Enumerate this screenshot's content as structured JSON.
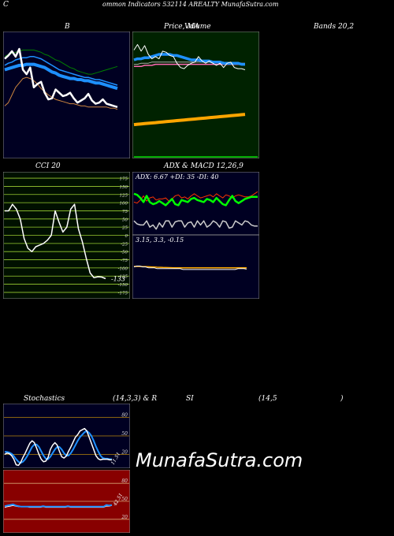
{
  "header": {
    "c": "C",
    "title": "ommon  Indicators 532114  AREALTY MunafaSutra.com"
  },
  "labels": {
    "bollinger_b": "B",
    "price_ma_1": "Price,  MA",
    "price_ma_2": "Volume",
    "bands": "Bands 20,2",
    "cci": "CCI 20",
    "adx_title": "ADX  & MACD 12,26,9",
    "adx_values": "ADX: 6.67  +DI: 35  -DI: 40",
    "macd_values": "3.15,  3.3,  -0.15",
    "stoch_1": "Stochastics",
    "stoch_2": "(14,3,3) & R",
    "stoch_3": "SI",
    "stoch_4": "(14,5",
    "stoch_5": ")"
  },
  "watermark": "MunafaSutra.com",
  "colors": {
    "panel_navy": "#000022",
    "panel_green": "#002200",
    "panel_red": "#880000",
    "cci_bg": "#001000",
    "grid_gold": "#b8860b",
    "grid_yellowgreen": "#9acd32",
    "rsi_grid": "#d4a373",
    "price": "#ffffff",
    "ma_blue": "#1e90ff",
    "ma_green": "#008000",
    "ma_orange": "#cd853f",
    "volume": "#ffa500",
    "adx_green": "#00ff00",
    "adx_red": "#ff3300",
    "stoch_white": "#ffffff",
    "stoch_blue": "#1e90ff"
  },
  "chart_data": [
    {
      "type": "line",
      "name": "bollinger",
      "x": [
        1,
        2,
        3,
        4,
        5,
        6,
        7,
        8,
        9,
        10,
        11,
        12,
        13,
        14,
        15,
        16,
        17,
        18,
        19,
        20,
        21,
        22,
        23,
        24,
        25,
        26,
        27,
        28,
        29,
        30,
        31,
        32
      ],
      "series": [
        {
          "values": [
            88,
            91,
            95,
            90,
            97,
            78,
            74,
            80,
            62,
            65,
            67,
            57,
            51,
            52,
            60,
            57,
            54,
            55,
            57,
            52,
            48,
            50,
            52,
            56,
            50,
            47,
            48,
            51,
            47,
            46,
            45,
            44
          ]
        },
        {
          "values": [
            78,
            79,
            80,
            81,
            82,
            82,
            83,
            83,
            83,
            82,
            81,
            80,
            78,
            76,
            75,
            73,
            72,
            71,
            70,
            70,
            69,
            69,
            68,
            68,
            67,
            66,
            66,
            65,
            64,
            63,
            62,
            61
          ]
        },
        {
          "values": [
            82,
            84,
            85,
            87,
            88,
            89,
            89,
            90,
            90,
            89,
            88,
            86,
            84,
            82,
            80,
            78,
            77,
            76,
            75,
            74,
            73,
            72,
            71,
            71,
            70,
            69,
            69,
            68,
            67,
            66,
            65,
            64
          ]
        },
        {
          "values": [
            90,
            92,
            93,
            94,
            95,
            96,
            96,
            96,
            96,
            95,
            94,
            92,
            91,
            89,
            87,
            86,
            84,
            82,
            80,
            79,
            77,
            76,
            75,
            74,
            74,
            75,
            76,
            77,
            78,
            79,
            80,
            81
          ]
        },
        {
          "values": [
            45,
            48,
            55,
            62,
            66,
            70,
            71,
            70,
            68,
            65,
            61,
            58,
            55,
            53,
            51,
            50,
            49,
            48,
            47,
            47,
            46,
            45,
            45,
            44,
            44,
            44,
            44,
            44,
            44,
            43,
            43,
            42
          ]
        }
      ]
    },
    {
      "type": "line",
      "name": "price_ma_volume",
      "x": [
        1,
        2,
        3,
        4,
        5,
        6,
        7,
        8,
        9,
        10,
        11,
        12,
        13,
        14,
        15,
        16,
        17,
        18,
        19,
        20,
        21,
        22,
        23,
        24,
        25,
        26,
        27,
        28,
        29,
        30,
        31,
        32
      ],
      "series": [
        {
          "values": [
            96,
            101,
            95,
            100,
            92,
            88,
            90,
            88,
            95,
            94,
            91,
            90,
            84,
            80,
            79,
            82,
            84,
            85,
            90,
            86,
            84,
            86,
            84,
            82,
            84,
            80,
            84,
            85,
            80,
            79,
            79,
            78
          ]
        },
        {
          "values": [
            87,
            88,
            88,
            89,
            89,
            90,
            91,
            92,
            92,
            92,
            92,
            91,
            91,
            90,
            89,
            88,
            87,
            87,
            87,
            86,
            86,
            86,
            85,
            85,
            85,
            84,
            84,
            84,
            84,
            84,
            83,
            83
          ]
        },
        {
          "values": [
            83,
            83,
            84,
            84,
            84,
            85,
            85,
            85,
            85,
            85,
            85,
            85,
            85,
            85,
            85,
            85,
            85,
            85,
            85,
            85,
            85,
            85,
            85,
            85,
            85,
            85,
            84,
            84,
            84,
            84,
            84,
            84
          ]
        },
        {
          "values": [
            81,
            81,
            81,
            82,
            82,
            82,
            83,
            83,
            83,
            83,
            83,
            83,
            83,
            83,
            83,
            83,
            83,
            83,
            83,
            83,
            83,
            83,
            83,
            83,
            83,
            83,
            83,
            83,
            83,
            83,
            83,
            83
          ]
        },
        {
          "values": [
            28,
            28.3,
            28.6,
            28.9,
            29.2,
            29.5,
            29.8,
            30.1,
            30.4,
            30.7,
            31,
            31.3,
            31.6,
            31.9,
            32.2,
            32.5,
            32.8,
            33.1,
            33.4,
            33.7,
            34,
            34.3,
            34.6,
            34.9,
            35.2,
            35.5,
            35.8,
            36.1,
            36.4,
            36.7,
            37,
            37.3
          ]
        }
      ]
    },
    {
      "type": "line",
      "name": "cci",
      "ticks": [
        175,
        150,
        125,
        100,
        75,
        50,
        25,
        0,
        -25,
        -50,
        -75,
        -100,
        -125,
        -150,
        -175
      ],
      "ylim": [
        -180,
        180
      ],
      "last_label": "-133",
      "x": [
        1,
        2,
        3,
        4,
        5,
        6,
        7,
        8,
        9,
        10,
        11,
        12,
        13,
        14,
        15,
        16,
        17,
        18,
        19,
        20,
        21,
        22,
        23,
        24,
        25,
        26,
        27
      ],
      "values": [
        75,
        75,
        95,
        80,
        50,
        -10,
        -40,
        -50,
        -35,
        -30,
        -25,
        -15,
        0,
        75,
        40,
        10,
        25,
        80,
        95,
        20,
        -20,
        -70,
        -115,
        -130,
        -127,
        -128,
        -133
      ]
    },
    {
      "type": "line",
      "name": "adx",
      "x": [
        1,
        2,
        3,
        4,
        5,
        6,
        7,
        8,
        9,
        10,
        11,
        12,
        13,
        14,
        15,
        16,
        17,
        18,
        19,
        20,
        21,
        22,
        23,
        24,
        25,
        26,
        27,
        28,
        29,
        30,
        31,
        32,
        33,
        34,
        35,
        36,
        37,
        38,
        39,
        40
      ],
      "series": [
        {
          "values": [
            38,
            37,
            34,
            30,
            36,
            30,
            28,
            29,
            31,
            29,
            27,
            30,
            33,
            28,
            27,
            32,
            31,
            30,
            33,
            34,
            32,
            31,
            30,
            33,
            32,
            30,
            34,
            31,
            28,
            27,
            32,
            36,
            31,
            29,
            31,
            33,
            34,
            35,
            35,
            35
          ]
        },
        {
          "values": [
            30,
            29,
            32,
            36,
            31,
            34,
            35,
            32,
            33,
            33,
            34,
            31,
            33,
            36,
            37,
            34,
            35,
            33,
            36,
            38,
            36,
            34,
            35,
            36,
            37,
            35,
            38,
            36,
            34,
            37,
            36,
            34,
            36,
            37,
            36,
            35,
            35,
            36,
            38,
            40
          ]
        },
        {
          "values": [
            12,
            9,
            8,
            8,
            12,
            6,
            8,
            4,
            10,
            6,
            12,
            12,
            6,
            11,
            12,
            12,
            6,
            10,
            11,
            6,
            12,
            8,
            12,
            6,
            8,
            12,
            10,
            6,
            12,
            11,
            5,
            6,
            12,
            10,
            8,
            12,
            11,
            8,
            7,
            7
          ]
        }
      ]
    },
    {
      "type": "line",
      "name": "macd",
      "x": [
        1,
        2,
        3,
        4,
        5,
        6,
        7,
        8,
        9,
        10,
        11,
        12,
        13,
        14,
        15,
        16,
        17,
        18,
        19,
        20,
        21,
        22,
        23,
        24,
        25,
        26,
        27,
        28,
        29,
        30,
        31,
        32,
        33,
        34,
        35,
        36,
        37,
        38,
        39,
        40
      ],
      "series": [
        {
          "values": [
            3.4,
            3.5,
            3.5,
            3.4,
            3.4,
            3.3,
            3.3,
            3.3,
            3.2,
            3.2,
            3.2,
            3.2,
            3.2,
            3.2,
            3.2,
            3.2,
            3.2,
            3.1,
            3.1,
            3.1,
            3.1,
            3.1,
            3.1,
            3.1,
            3.1,
            3.1,
            3.1,
            3.1,
            3.1,
            3.1,
            3.1,
            3.1,
            3.1,
            3.1,
            3.1,
            3.1,
            3.2,
            3.2,
            3.2,
            3.15
          ]
        },
        {
          "values": [
            3.45,
            3.45,
            3.45,
            3.44,
            3.43,
            3.42,
            3.4,
            3.38,
            3.36,
            3.35,
            3.34,
            3.33,
            3.32,
            3.31,
            3.3,
            3.3,
            3.3,
            3.3,
            3.3,
            3.3,
            3.3,
            3.3,
            3.3,
            3.3,
            3.3,
            3.3,
            3.3,
            3.3,
            3.3,
            3.3,
            3.3,
            3.3,
            3.3,
            3.3,
            3.3,
            3.3,
            3.3,
            3.3,
            3.3,
            3.3
          ]
        }
      ]
    },
    {
      "type": "line",
      "name": "stochastics",
      "ticks": [
        80,
        50,
        20
      ],
      "ylim": [
        0,
        100
      ],
      "last_label": "11.51",
      "x": [
        1,
        2,
        3,
        4,
        5,
        6,
        7,
        8,
        9,
        10,
        11,
        12,
        13,
        14,
        15,
        16,
        17,
        18,
        19,
        20,
        21,
        22,
        23,
        24,
        25,
        26,
        27,
        28,
        29,
        30,
        31,
        32,
        33,
        34,
        35,
        36,
        37,
        38,
        39,
        40,
        41,
        42,
        43,
        44,
        45,
        46,
        47,
        48
      ],
      "series": [
        {
          "values": [
            20,
            22,
            21,
            18,
            12,
            3,
            2,
            7,
            15,
            22,
            30,
            38,
            42,
            39,
            30,
            20,
            12,
            8,
            9,
            15,
            28,
            35,
            39,
            35,
            25,
            16,
            14,
            17,
            25,
            32,
            40,
            48,
            52,
            58,
            60,
            62,
            58,
            48,
            38,
            28,
            18,
            13,
            11,
            12,
            12,
            12,
            11,
            11
          ]
        },
        {
          "values": [
            24,
            24,
            23,
            21,
            17,
            12,
            8,
            6,
            8,
            12,
            18,
            25,
            32,
            36,
            36,
            32,
            25,
            18,
            13,
            12,
            16,
            22,
            28,
            32,
            32,
            28,
            22,
            18,
            18,
            22,
            28,
            35,
            42,
            48,
            52,
            56,
            58,
            55,
            50,
            42,
            33,
            25,
            18,
            14,
            13,
            13,
            12,
            12
          ]
        }
      ]
    },
    {
      "type": "line",
      "name": "rsi",
      "ticks": [
        80,
        50,
        20
      ],
      "ylim": [
        0,
        100
      ],
      "last_label": "42.51",
      "x": [
        1,
        2,
        3,
        4,
        5,
        6,
        7,
        8,
        9,
        10,
        11,
        12,
        13,
        14,
        15,
        16,
        17,
        18,
        19,
        20,
        21,
        22,
        23,
        24,
        25,
        26,
        27,
        28,
        29,
        30,
        31,
        32,
        33,
        34,
        35,
        36,
        37,
        38,
        39,
        40
      ],
      "series": [
        {
          "values": [
            42,
            43,
            44,
            45,
            43,
            42,
            41,
            41,
            41,
            41,
            41,
            41,
            41,
            41,
            42,
            41,
            41,
            41,
            41,
            41,
            41,
            41,
            41,
            42,
            41,
            41,
            41,
            41,
            41,
            41,
            41,
            41,
            41,
            41,
            41,
            41,
            41,
            44,
            43,
            44
          ]
        },
        {
          "values": [
            40,
            41,
            42,
            43,
            42,
            41,
            41,
            41,
            41,
            40,
            40,
            40,
            40,
            40,
            41,
            40,
            40,
            40,
            40,
            40,
            40,
            40,
            40,
            41,
            40,
            40,
            40,
            40,
            40,
            40,
            40,
            40,
            40,
            40,
            40,
            40,
            40,
            42,
            42,
            43
          ]
        }
      ]
    }
  ]
}
